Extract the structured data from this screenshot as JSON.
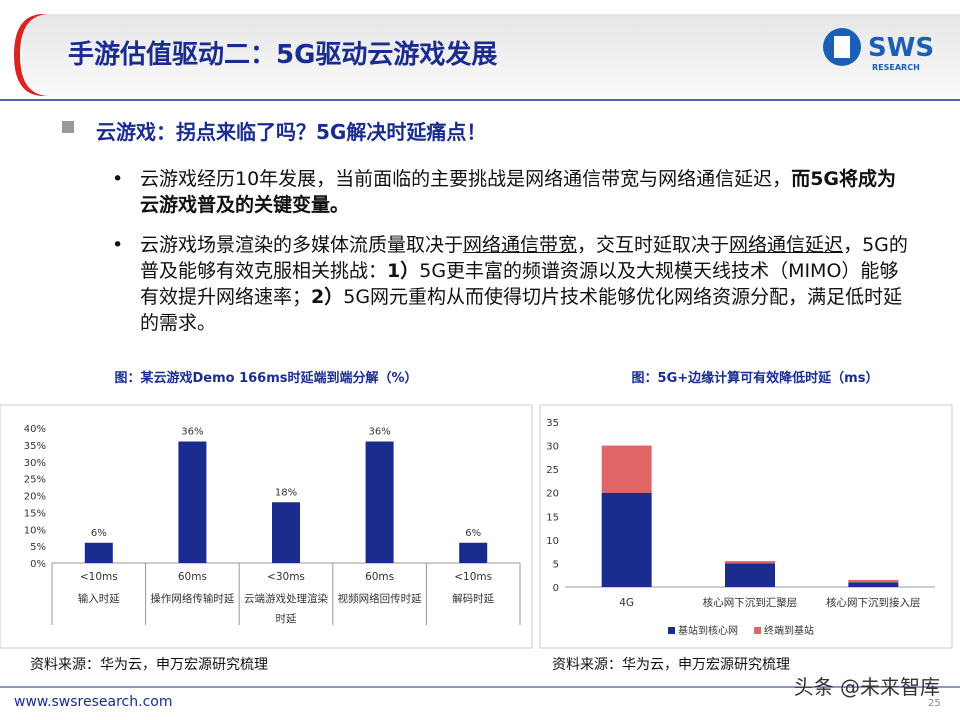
{
  "header": {
    "title": "手游估值驱动二：5G驱动云游戏发展",
    "logo": "SWS",
    "logo_sub": "RESEARCH"
  },
  "section": "云游戏：拐点来临了吗？5G解决时延痛点！",
  "bullets": [
    [
      {
        "text": "云游戏经历10年发展，当前面临的主要挑战是网络通信带宽与网络通信延迟，"
      },
      {
        "text": "而5G将成为云游戏普及的关键变量。",
        "bold": true
      }
    ],
    [
      {
        "text": "云游戏场景渲染的多媒体流质量取决于"
      },
      {
        "text": "网络通信带宽",
        "underline": true
      },
      {
        "text": "，交互时延取决于"
      },
      {
        "text": "网络通信延迟",
        "underline": true
      },
      {
        "text": "，5G的普及能够有效克服相关挑战："
      },
      {
        "text": "1）",
        "bold": true
      },
      {
        "text": "5G更丰富的频谱资源以及大规模天线技术（MIMO）能够有效提升网络速率；"
      },
      {
        "text": "2）",
        "bold": true
      },
      {
        "text": "5G网元重构从而使得切片技术能够优化网络资源分配，满足低时延的需求。"
      }
    ]
  ],
  "chart_data": [
    {
      "type": "bar",
      "title": "图：某云游戏Demo 166ms时延端到端分解（%）",
      "categories": [
        "<10ms",
        "60ms",
        "<30ms",
        "60ms",
        "<10ms"
      ],
      "sub_categories": [
        "输入时延",
        "操作网络传输时延",
        "云端游戏处理渲染时延",
        "视频网络回传时延",
        "解码时延"
      ],
      "values": [
        6,
        36,
        18,
        36,
        6
      ],
      "value_labels": [
        "6%",
        "36%",
        "18%",
        "36%",
        "6%"
      ],
      "color": "#1a2d8f",
      "ylim": [
        0,
        40
      ],
      "yticks": [
        {
          "value": 0,
          "label": "0%"
        },
        {
          "value": 5,
          "label": "5%"
        },
        {
          "value": 10,
          "label": "10%"
        },
        {
          "value": 15,
          "label": "15%"
        },
        {
          "value": 20,
          "label": "20%"
        },
        {
          "value": 25,
          "label": "25%"
        },
        {
          "value": 30,
          "label": "30%"
        },
        {
          "value": 35,
          "label": "35%"
        },
        {
          "value": 40,
          "label": "40%"
        }
      ]
    },
    {
      "type": "stacked_bar",
      "title": "图：5G+边缘计算可有效降低时延（ms）",
      "categories": [
        "4G",
        "核心网下沉到汇聚层",
        "核心网下沉到接入层"
      ],
      "series": [
        {
          "name": "基站到核心网",
          "color": "#1a2d8f",
          "values": [
            20,
            5,
            1
          ]
        },
        {
          "name": "终端到基站",
          "color": "#e06666",
          "values": [
            10,
            0.5,
            0.5
          ]
        }
      ],
      "ylim": [
        0,
        35
      ],
      "yticks": [
        0,
        5,
        10,
        15,
        20,
        25,
        30,
        35
      ],
      "legend": "bottom"
    }
  ],
  "sources": [
    "资料来源：华为云，申万宏源研究梳理",
    "资料来源：华为云，申万宏源研究梳理"
  ],
  "footer": {
    "url": "www.swsresearch.com",
    "page": "25"
  },
  "watermark": "头条 @未来智库"
}
